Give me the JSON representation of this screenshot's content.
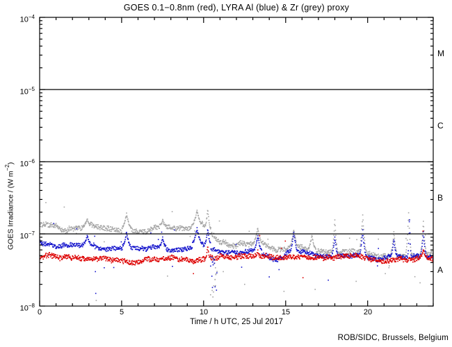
{
  "figure": {
    "footer": "ROB/SIDC, Brussels, Belgium"
  },
  "chart_data": {
    "type": "scatter",
    "title": "GOES 0.1−0.8nm (red), LYRA Al (blue) & Zr (grey) proxy",
    "xlabel": "Time / h UTC, 25 Jul 2017",
    "ylabel": {
      "prefix": "GOES Irradiance / (W m",
      "sup": "−2",
      "suffix": ")"
    },
    "x_range": [
      0,
      24
    ],
    "x_major_ticks": [
      0,
      5,
      10,
      15,
      20
    ],
    "x_minor_step": 1,
    "y_log_range": [
      -8,
      -4
    ],
    "y_decade_exponents": [
      -4,
      -5,
      -6,
      -7,
      -8
    ],
    "hlines": [
      1e-05,
      1e-06,
      1e-07
    ],
    "grid": false,
    "legend": "encoded in title colors",
    "flare_classes": [
      {
        "label": "M",
        "range": [
          1e-05,
          0.0001
        ]
      },
      {
        "label": "C",
        "range": [
          1e-06,
          1e-05
        ]
      },
      {
        "label": "B",
        "range": [
          1e-07,
          1e-06
        ]
      },
      {
        "label": "A",
        "range": [
          1e-08,
          1e-07
        ]
      }
    ],
    "colors": {
      "red": "#dd0000",
      "blue": "#1414cc",
      "grey": "#a5a5a5",
      "axis": "#000000"
    },
    "series": [
      {
        "key": "grey",
        "label": "LYRA Zr proxy",
        "color": "#a5a5a5",
        "seed": 5,
        "noise": 0.034,
        "outlier_rate": 0.02,
        "keypoints": [
          [
            0,
            1.35e-07
          ],
          [
            0.8,
            1.28e-07
          ],
          [
            1.6,
            1.08e-07
          ],
          [
            2.4,
            1.22e-07
          ],
          [
            3.1,
            1.3e-07
          ],
          [
            3.9,
            1.2e-07
          ],
          [
            4.7,
            1.17e-07
          ],
          [
            5.7,
            1.24e-07
          ],
          [
            6.5,
            1.12e-07
          ],
          [
            7.4,
            1.32e-07
          ],
          [
            8.3,
            1.08e-07
          ],
          [
            9.1,
            1.14e-07
          ],
          [
            9.9,
            1.4e-07
          ],
          [
            10.35,
            1.12e-07
          ],
          [
            10.9,
            8.2e-08
          ],
          [
            11.8,
            7.6e-08
          ],
          [
            12.8,
            7.1e-08
          ],
          [
            13.6,
            7.6e-08
          ],
          [
            14.4,
            6.2e-08
          ],
          [
            15.2,
            6.4e-08
          ],
          [
            16.1,
            6.5e-08
          ],
          [
            17.0,
            5.9e-08
          ],
          [
            18.0,
            5.6e-08
          ],
          [
            19.0,
            5.6e-08
          ],
          [
            20.0,
            5.4e-08
          ],
          [
            21.0,
            5.3e-08
          ],
          [
            22.0,
            5.4e-08
          ],
          [
            23.0,
            5.3e-08
          ],
          [
            24.0,
            5.5e-08
          ]
        ],
        "spikes": [
          [
            2.9,
            1.6e-07,
            0.25
          ],
          [
            5.3,
            1.9e-07,
            0.3
          ],
          [
            7.5,
            1.55e-07,
            0.2
          ],
          [
            9.6,
            2.1e-07,
            0.35
          ],
          [
            10.25,
            2.2e-07,
            0.2
          ],
          [
            13.3,
            1.2e-07,
            0.3
          ],
          [
            15.5,
            1.15e-07,
            0.3
          ],
          [
            16.6,
            9.5e-08,
            0.25
          ],
          [
            18.0,
            1.6e-07,
            0.2
          ],
          [
            19.7,
            1.8e-07,
            0.25
          ],
          [
            21.6,
            1.1e-07,
            0.2
          ],
          [
            22.5,
            2e-07,
            0.18
          ],
          [
            23.4,
            1.5e-07,
            0.2
          ]
        ],
        "strays": [
          [
            7.8,
            2.6e-08
          ],
          [
            11.2,
            3e-08
          ],
          [
            12.5,
            2e-08
          ],
          [
            14.9,
            1.6e-08
          ],
          [
            16.8,
            1.7e-08
          ],
          [
            19.3,
            2.2e-08
          ],
          [
            21.3,
            3.4e-08
          ],
          [
            23.2,
            2.1e-08
          ],
          [
            3.45,
            1.2e-08
          ]
        ]
      },
      {
        "key": "blue",
        "label": "LYRA Al proxy",
        "color": "#1414cc",
        "seed": 11,
        "noise": 0.028,
        "outlier_rate": 0.01,
        "keypoints": [
          [
            0,
            7.8e-08
          ],
          [
            1.0,
            6.6e-08
          ],
          [
            2.0,
            7e-08
          ],
          [
            3.1,
            7.5e-08
          ],
          [
            4.0,
            6.8e-08
          ],
          [
            5.0,
            7e-08
          ],
          [
            6.0,
            6.6e-08
          ],
          [
            7.0,
            7.1e-08
          ],
          [
            8.0,
            6.4e-08
          ],
          [
            9.0,
            6.7e-08
          ],
          [
            9.9,
            7.9e-08
          ],
          [
            10.4,
            7.1e-08
          ],
          [
            11.0,
            6.2e-08
          ],
          [
            12.0,
            6e-08
          ],
          [
            13.0,
            6.2e-08
          ],
          [
            13.8,
            5.4e-08
          ],
          [
            14.5,
            4.5e-08
          ],
          [
            15.2,
            5.6e-08
          ],
          [
            16.0,
            5.2e-08
          ],
          [
            16.8,
            4.9e-08
          ],
          [
            17.6,
            5.2e-08
          ],
          [
            18.5,
            5.4e-08
          ],
          [
            19.2,
            5.2e-08
          ],
          [
            20.0,
            5e-08
          ],
          [
            20.6,
            4.5e-08
          ],
          [
            21.4,
            5.2e-08
          ],
          [
            22.2,
            4.9e-08
          ],
          [
            23.0,
            5.2e-08
          ],
          [
            24.0,
            4.8e-08
          ]
        ],
        "spikes": [
          [
            2.9,
            9.5e-08,
            0.2
          ],
          [
            5.3,
            1.05e-07,
            0.25
          ],
          [
            7.5,
            8.8e-08,
            0.2
          ],
          [
            9.6,
            1.2e-07,
            0.3
          ],
          [
            10.25,
            1.15e-07,
            0.18
          ],
          [
            13.3,
            9.5e-08,
            0.25
          ],
          [
            15.5,
            1.05e-07,
            0.28
          ],
          [
            18.0,
            9e-08,
            0.18
          ],
          [
            19.7,
            1.1e-07,
            0.22
          ],
          [
            21.6,
            8.5e-08,
            0.18
          ],
          [
            22.55,
            1.9e-07,
            0.1
          ],
          [
            23.4,
            1.05e-07,
            0.18
          ]
        ],
        "strays": [
          [
            3.4,
            3e-08
          ],
          [
            3.42,
            1.5e-08
          ],
          [
            14.6,
            3.2e-08
          ],
          [
            20.6,
            3.6e-08
          ]
        ]
      },
      {
        "key": "red",
        "label": "GOES 0.1-0.8nm",
        "color": "#dd0000",
        "seed": 3,
        "noise": 0.033,
        "outlier_rate": 0.006,
        "keypoints": [
          [
            0,
            4.8e-08
          ],
          [
            2,
            4.6e-08
          ],
          [
            4,
            4.7e-08
          ],
          [
            6,
            4.4e-08
          ],
          [
            8,
            4.6e-08
          ],
          [
            10,
            4.7e-08
          ],
          [
            12,
            4.8e-08
          ],
          [
            14,
            4.4e-08
          ],
          [
            16,
            4.6e-08
          ],
          [
            18,
            4.7e-08
          ],
          [
            20,
            4.6e-08
          ],
          [
            22,
            4.8e-08
          ],
          [
            24,
            5e-08
          ]
        ],
        "spikes": [
          [
            10.25,
            7e-08,
            0.12
          ],
          [
            13.3,
            5.8e-08,
            0.2
          ],
          [
            23.4,
            6e-08,
            0.15
          ]
        ],
        "strays": []
      }
    ],
    "dropouts": [
      {
        "t": 10.62,
        "span": 0.2,
        "min": 1.2e-08,
        "max": 6.5e-08,
        "count": 30,
        "series": [
          "blue",
          "grey"
        ]
      }
    ]
  }
}
